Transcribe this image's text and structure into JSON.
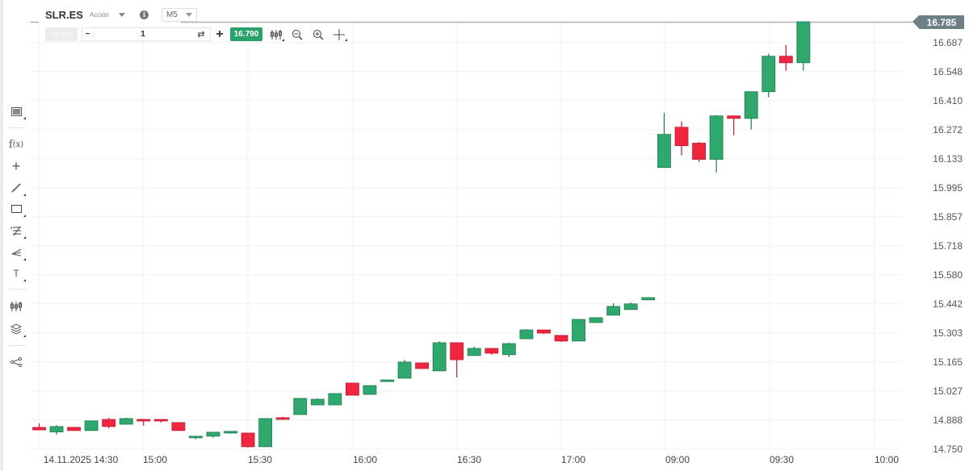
{
  "header": {
    "symbol": "SLR.ES",
    "asset_type": "Acción",
    "timeframe": "M5",
    "info_icon": "info-icon"
  },
  "trade": {
    "sell_price": "16.780",
    "quantity": "1",
    "minus_label": "−",
    "plus_label": "+",
    "swap_icon": "⇄",
    "buy_price": "16.790"
  },
  "toolbar_top": [
    {
      "name": "indicators-icon",
      "glyph": "⫶"
    },
    {
      "name": "zoom-out-icon",
      "glyph": "⊖"
    },
    {
      "name": "zoom-in-icon",
      "glyph": "⊕"
    },
    {
      "name": "crosshair-icon",
      "glyph": "✛"
    }
  ],
  "toolbar_left": [
    {
      "name": "chart-type-icon",
      "glyph": "▣"
    },
    {
      "name": "function-icon",
      "glyph": "f(x)"
    },
    {
      "name": "crosshair-cursor-icon",
      "glyph": "+"
    },
    {
      "name": "trendline-icon",
      "glyph": "⁄"
    },
    {
      "name": "rectangle-icon",
      "glyph": "▭"
    },
    {
      "name": "fibonacci-icon",
      "glyph": "≊"
    },
    {
      "name": "pitchfork-icon",
      "glyph": "⫽"
    },
    {
      "name": "text-icon",
      "glyph": "T"
    },
    {
      "name": "candles-settings-icon",
      "glyph": "⫶"
    },
    {
      "name": "layers-icon",
      "glyph": "◈"
    },
    {
      "name": "share-icon",
      "glyph": "⋖"
    }
  ],
  "colors": {
    "up": "#2fa86e",
    "down": "#f0263f",
    "grid": "#f2f2f2",
    "price_line": "#a9b1b4",
    "price_tag": "#6e7f86",
    "buy": "#2aa36b"
  },
  "chart_data": {
    "type": "candlestick",
    "title": "SLR.ES M5",
    "current_price": "16.785",
    "y_ticks": [
      "16.687",
      "16.548",
      "16.410",
      "16.272",
      "16.133",
      "15.995",
      "15.857",
      "15.718",
      "15.580",
      "15.442",
      "15.303",
      "15.165",
      "15.027",
      "14.888",
      "14.750"
    ],
    "x_ticks": [
      "14.11.2025 14:30",
      "15:00",
      "15:30",
      "16:00",
      "16:30",
      "17:00",
      "09:00",
      "09:30",
      "10:00"
    ],
    "ylim": [
      14.75,
      16.8
    ],
    "grid": true,
    "candles": [
      {
        "t": "14:25",
        "o": 14.854,
        "h": 14.873,
        "l": 14.842,
        "c": 14.842
      },
      {
        "t": "14:30",
        "o": 14.832,
        "h": 14.865,
        "l": 14.82,
        "c": 14.858
      },
      {
        "t": "14:35",
        "o": 14.854,
        "h": 14.854,
        "l": 14.839,
        "c": 14.839
      },
      {
        "t": "14:40",
        "o": 14.839,
        "h": 14.885,
        "l": 14.839,
        "c": 14.885
      },
      {
        "t": "14:45",
        "o": 14.892,
        "h": 14.9,
        "l": 14.85,
        "c": 14.858
      },
      {
        "t": "14:50",
        "o": 14.869,
        "h": 14.9,
        "l": 14.869,
        "c": 14.896
      },
      {
        "t": "14:55",
        "o": 14.892,
        "h": 14.892,
        "l": 14.862,
        "c": 14.885
      },
      {
        "t": "15:00",
        "o": 14.892,
        "h": 14.892,
        "l": 14.877,
        "c": 14.885
      },
      {
        "t": "15:05",
        "o": 14.877,
        "h": 14.877,
        "l": 14.839,
        "c": 14.839
      },
      {
        "t": "15:10",
        "o": 14.805,
        "h": 14.812,
        "l": 14.797,
        "c": 14.812
      },
      {
        "t": "15:15",
        "o": 14.812,
        "h": 14.831,
        "l": 14.805,
        "c": 14.831
      },
      {
        "t": "15:20",
        "o": 14.827,
        "h": 14.835,
        "l": 14.824,
        "c": 14.835
      },
      {
        "t": "15:25",
        "o": 14.827,
        "h": 14.827,
        "l": 14.758,
        "c": 14.762
      },
      {
        "t": "15:30",
        "o": 14.762,
        "h": 14.896,
        "l": 14.762,
        "c": 14.896
      },
      {
        "t": "15:35",
        "o": 14.9,
        "h": 14.904,
        "l": 14.892,
        "c": 14.892
      },
      {
        "t": "15:40",
        "o": 14.915,
        "h": 14.992,
        "l": 14.915,
        "c": 14.992
      },
      {
        "t": "15:45",
        "o": 14.961,
        "h": 14.992,
        "l": 14.961,
        "c": 14.988
      },
      {
        "t": "15:50",
        "o": 14.961,
        "h": 15.015,
        "l": 14.961,
        "c": 15.015
      },
      {
        "t": "15:55",
        "o": 15.065,
        "h": 15.065,
        "l": 15.007,
        "c": 15.007
      },
      {
        "t": "16:00",
        "o": 15.011,
        "h": 15.053,
        "l": 15.011,
        "c": 15.053
      },
      {
        "t": "16:05",
        "o": 15.072,
        "h": 15.08,
        "l": 15.072,
        "c": 15.08
      },
      {
        "t": "16:10",
        "o": 15.088,
        "h": 15.176,
        "l": 15.088,
        "c": 15.165
      },
      {
        "t": "16:15",
        "o": 15.161,
        "h": 15.161,
        "l": 15.134,
        "c": 15.134
      },
      {
        "t": "16:20",
        "o": 15.123,
        "h": 15.264,
        "l": 15.123,
        "c": 15.257
      },
      {
        "t": "16:25",
        "o": 15.257,
        "h": 15.257,
        "l": 15.092,
        "c": 15.176
      },
      {
        "t": "16:30",
        "o": 15.196,
        "h": 15.238,
        "l": 15.196,
        "c": 15.23
      },
      {
        "t": "16:35",
        "o": 15.23,
        "h": 15.23,
        "l": 15.2,
        "c": 15.207
      },
      {
        "t": "16:40",
        "o": 15.2,
        "h": 15.257,
        "l": 15.188,
        "c": 15.253
      },
      {
        "t": "16:45",
        "o": 15.276,
        "h": 15.322,
        "l": 15.276,
        "c": 15.318
      },
      {
        "t": "16:50",
        "o": 15.318,
        "h": 15.318,
        "l": 15.299,
        "c": 15.303
      },
      {
        "t": "16:55",
        "o": 15.292,
        "h": 15.292,
        "l": 15.261,
        "c": 15.265
      },
      {
        "t": "17:00",
        "o": 15.265,
        "h": 15.368,
        "l": 15.265,
        "c": 15.368
      },
      {
        "t": "17:05",
        "o": 15.353,
        "h": 15.376,
        "l": 15.353,
        "c": 15.376
      },
      {
        "t": "17:10",
        "o": 15.388,
        "h": 15.445,
        "l": 15.388,
        "c": 15.43
      },
      {
        "t": "17:15",
        "o": 15.415,
        "h": 15.449,
        "l": 15.415,
        "c": 15.442
      },
      {
        "t": "17:20",
        "o": 15.461,
        "h": 15.472,
        "l": 15.461,
        "c": 15.472
      },
      {
        "t": "09:00",
        "o": 16.091,
        "h": 16.352,
        "l": 16.091,
        "c": 16.249
      },
      {
        "t": "09:05",
        "o": 16.283,
        "h": 16.31,
        "l": 16.149,
        "c": 16.195
      },
      {
        "t": "09:10",
        "o": 16.207,
        "h": 16.214,
        "l": 16.118,
        "c": 16.13
      },
      {
        "t": "09:15",
        "o": 16.13,
        "h": 16.341,
        "l": 16.068,
        "c": 16.337
      },
      {
        "t": "09:20",
        "o": 16.337,
        "h": 16.337,
        "l": 16.245,
        "c": 16.325
      },
      {
        "t": "09:25",
        "o": 16.325,
        "h": 16.452,
        "l": 16.272,
        "c": 16.452
      },
      {
        "t": "09:30",
        "o": 16.452,
        "h": 16.633,
        "l": 16.425,
        "c": 16.621
      },
      {
        "t": "09:35",
        "o": 16.621,
        "h": 16.675,
        "l": 16.552,
        "c": 16.59
      },
      {
        "t": "09:40",
        "o": 16.59,
        "h": 16.785,
        "l": 16.552,
        "c": 16.785
      }
    ]
  }
}
